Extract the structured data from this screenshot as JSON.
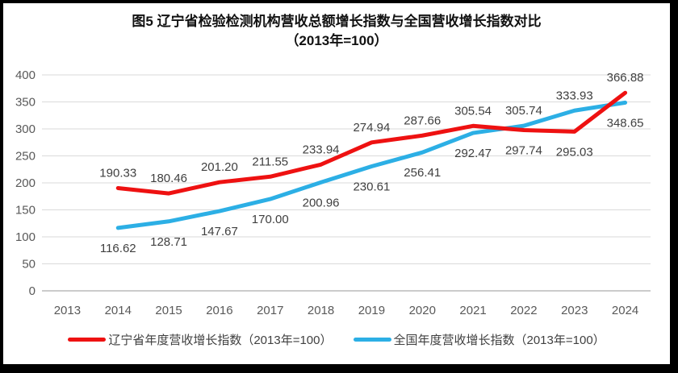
{
  "title": {
    "line1": "图5  辽宁省检验检测机构营收总额增长指数与全国营收增长指数对比",
    "line2": "（2013年=100）"
  },
  "chart_data": {
    "type": "line",
    "categories": [
      "2013",
      "2014",
      "2015",
      "2016",
      "2017",
      "2018",
      "2019",
      "2020",
      "2021",
      "2022",
      "2023",
      "2024"
    ],
    "series": [
      {
        "name": "辽宁省年度营收增长指数（2013年=100）",
        "color": "#EE1111",
        "values": [
          null,
          190.33,
          180.46,
          201.2,
          211.55,
          233.94,
          274.94,
          287.66,
          305.54,
          297.74,
          295.03,
          366.88
        ],
        "label_sides": [
          null,
          "above",
          "above",
          "above",
          "above",
          "above",
          "above",
          "above",
          "above",
          "below",
          "below",
          "above"
        ]
      },
      {
        "name": "全国年度营收增长指数（2013年=100）",
        "color": "#2CAFE5",
        "values": [
          null,
          116.62,
          128.71,
          147.67,
          170.0,
          200.96,
          230.61,
          256.41,
          292.47,
          305.74,
          333.93,
          348.65
        ],
        "label_sides": [
          null,
          "below",
          "below",
          "below",
          "below",
          "below",
          "below",
          "below",
          "below",
          "above",
          "above",
          "below"
        ]
      }
    ],
    "ylim": [
      0,
      400
    ],
    "yticks": [
      0,
      50,
      100,
      150,
      200,
      250,
      300,
      350,
      400
    ],
    "grid": true,
    "legend_position": "bottom",
    "grid_color": "#DADADA",
    "axis_color": "#ACACAC",
    "tick_label_color": "#595959",
    "data_label_color": "#3F3F3F",
    "line_width": 5,
    "label_decimals": 2
  },
  "legend": {
    "items": [
      {
        "label": "辽宁省年度营收增长指数（2013年=100）",
        "color": "#EE1111"
      },
      {
        "label": "全国年度营收增长指数（2013年=100）",
        "color": "#2CAFE5"
      }
    ]
  }
}
